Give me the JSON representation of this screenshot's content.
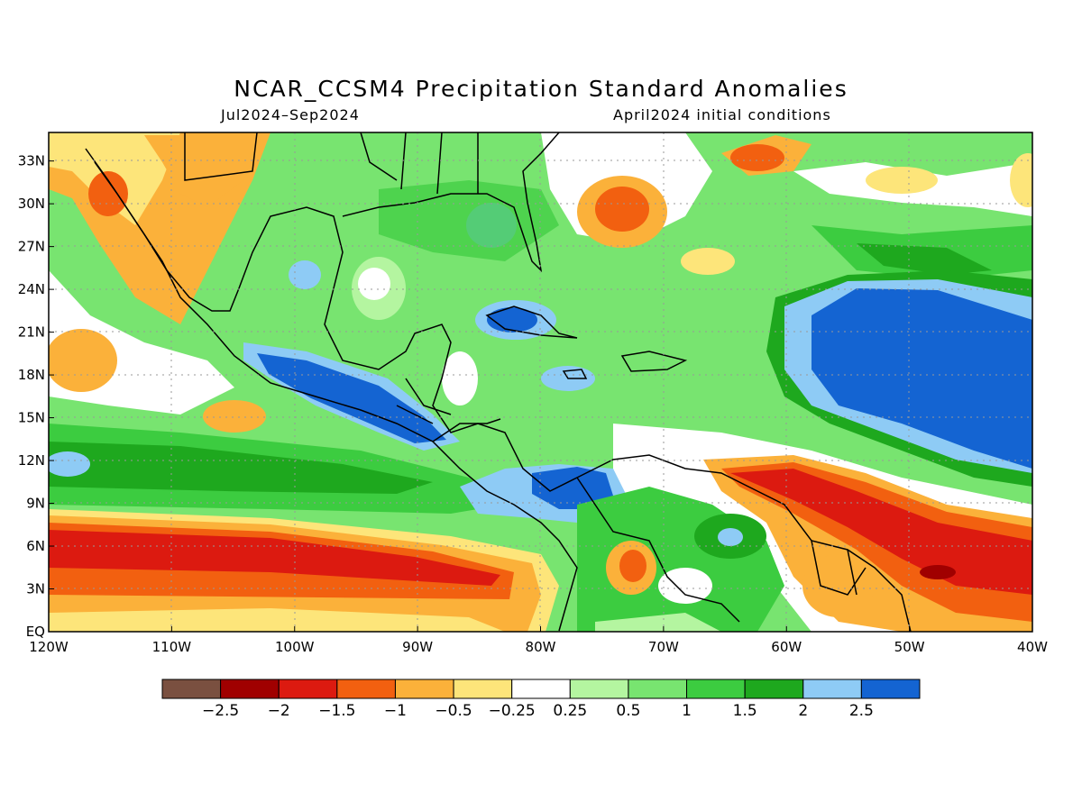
{
  "title": "NCAR_CCSM4 Precipitation Standard Anomalies",
  "period": "Jul2024–Sep2024",
  "init": "April2024 initial conditions",
  "lat_labels": [
    "33N",
    "30N",
    "27N",
    "24N",
    "21N",
    "18N",
    "15N",
    "12N",
    "9N",
    "6N",
    "3N",
    "EQ"
  ],
  "lat_values": [
    33,
    30,
    27,
    24,
    21,
    18,
    15,
    12,
    9,
    6,
    3,
    0
  ],
  "lon_labels": [
    "120W",
    "110W",
    "100W",
    "90W",
    "80W",
    "70W",
    "60W",
    "50W",
    "40W"
  ],
  "lon_values": [
    -120,
    -110,
    -100,
    -90,
    -80,
    -70,
    -60,
    -50,
    -40
  ],
  "colorbar": {
    "colors": [
      "#7a5040",
      "#a00000",
      "#dc1a10",
      "#f26010",
      "#fbb13a",
      "#fde57a",
      "#ffffff",
      "#b4f5a0",
      "#78e470",
      "#3ccc40",
      "#1ea81e",
      "#8ecbf5",
      "#1464d2"
    ],
    "labels": [
      "−2.5",
      "−2",
      "−1.5",
      "−1",
      "−0.5",
      "−0.25",
      "0.25",
      "0.5",
      "1",
      "1.5",
      "2",
      "2.5"
    ]
  }
}
